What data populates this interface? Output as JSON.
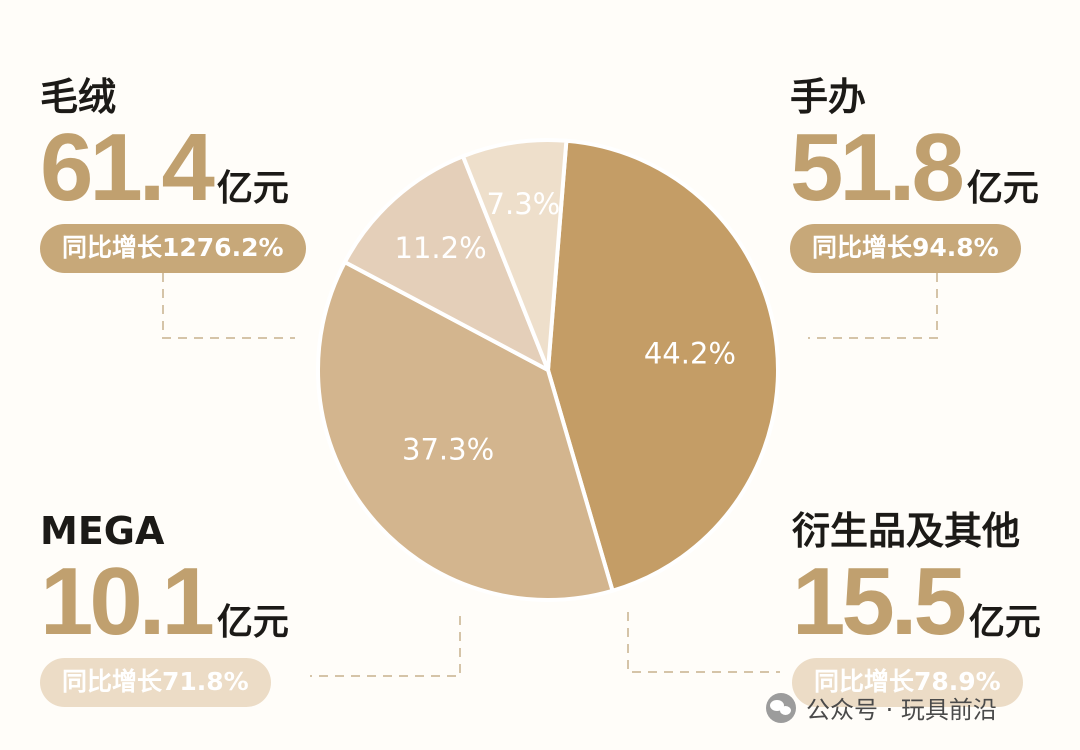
{
  "chart_data": {
    "type": "pie",
    "colors": {
      "plush": "#c49d66",
      "figures": "#d3b58e",
      "derivatives": "#e4cfb9",
      "mega": "#eedfcb",
      "divider": "#ffffff",
      "accent": "#c0a06f"
    },
    "slices": [
      {
        "key": "plush",
        "label": "毛绒",
        "value": 44.2,
        "value_label": "44.2%",
        "amount": "61.4",
        "unit": "亿元",
        "growth": "同比增长1276.2%"
      },
      {
        "key": "figures",
        "label": "手办",
        "value": 37.3,
        "value_label": "37.3%",
        "amount": "51.8",
        "unit": "亿元",
        "growth": "同比增长94.8%"
      },
      {
        "key": "derivatives",
        "label": "衍生品及其他",
        "value": 11.2,
        "value_label": "11.2%",
        "amount": "15.5",
        "unit": "亿元",
        "growth": "同比增长78.9%"
      },
      {
        "key": "mega",
        "label": "MEGA",
        "value": 7.3,
        "value_label": "7.3%",
        "amount": "10.1",
        "unit": "亿元",
        "growth": "同比增长71.8%"
      }
    ]
  },
  "watermark": {
    "icon": "wechat-icon",
    "text": "公众号 · 玩具前沿"
  }
}
